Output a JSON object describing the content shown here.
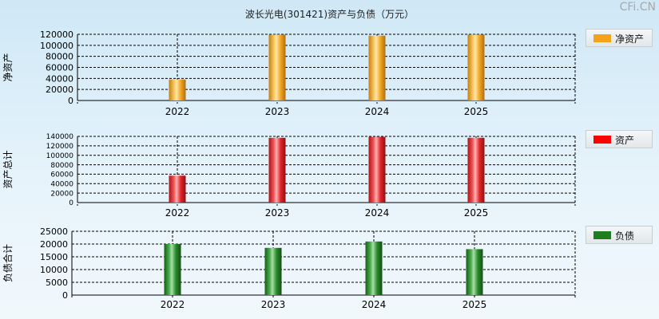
{
  "title": "波长光电(301421)资产与负债（万元）",
  "watermark": "CFi.CN",
  "chart_data": [
    {
      "type": "bar",
      "ylabel": "净资产",
      "legend": "净资产",
      "color": "#f5a41a",
      "categories": [
        "2022",
        "2023",
        "2024",
        "2025"
      ],
      "values": [
        38000,
        119500,
        117500,
        119500
      ],
      "ylim": [
        0,
        120000
      ],
      "yticks": [
        0,
        20000,
        40000,
        60000,
        80000,
        100000,
        120000
      ],
      "legend_position": "right"
    },
    {
      "type": "bar",
      "ylabel": "资产总计",
      "legend": "资产",
      "color": "#e8262a",
      "categories": [
        "2022",
        "2023",
        "2024",
        "2025"
      ],
      "values": [
        57000,
        137000,
        139000,
        137000
      ],
      "ylim": [
        0,
        140000
      ],
      "yticks": [
        0,
        20000,
        40000,
        60000,
        80000,
        100000,
        120000,
        140000
      ],
      "legend_position": "right"
    },
    {
      "type": "bar",
      "ylabel": "负债合计",
      "legend": "负债",
      "color": "#1e8a1e",
      "categories": [
        "2022",
        "2023",
        "2024",
        "2025"
      ],
      "values": [
        20000,
        18500,
        21000,
        18000
      ],
      "ylim": [
        0,
        25000
      ],
      "yticks": [
        0,
        5000,
        10000,
        15000,
        20000,
        25000
      ],
      "legend_position": "right"
    }
  ]
}
